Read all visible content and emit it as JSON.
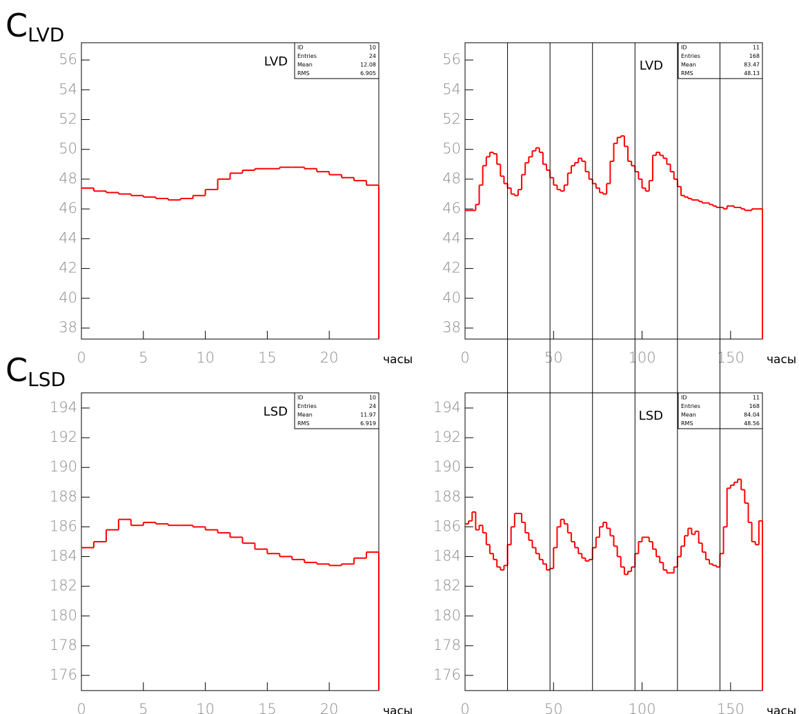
{
  "panel_labels": [
    {
      "letter": "C",
      "subscript": "LVD"
    },
    {
      "letter": "C",
      "subscript": "LSD"
    }
  ],
  "chart_data": [
    {
      "type": "histogram",
      "annotation": "LVD",
      "xlabel": "часы",
      "color": "#ff0000",
      "bins": [
        0,
        1,
        2,
        3,
        4,
        5,
        6,
        7,
        8,
        9,
        10,
        11,
        12,
        13,
        14,
        15,
        16,
        17,
        18,
        19,
        20,
        21,
        22,
        23,
        24
      ],
      "values": [
        47.4,
        47.2,
        47.1,
        47.0,
        46.9,
        46.8,
        46.7,
        46.6,
        46.7,
        46.9,
        47.3,
        48.0,
        48.4,
        48.6,
        48.7,
        48.7,
        48.8,
        48.8,
        48.7,
        48.5,
        48.3,
        48.1,
        47.9,
        47.6
      ],
      "xlim": [
        0,
        24
      ],
      "ylim": [
        37.26,
        57.16
      ],
      "xticks": [
        0,
        5,
        10,
        15,
        20
      ],
      "yticks": [
        38,
        40,
        42,
        44,
        46,
        48,
        50,
        52,
        54,
        56
      ],
      "stats": [
        [
          "ID",
          "10"
        ],
        [
          "Entries",
          "24"
        ],
        [
          "Mean",
          "12.08"
        ],
        [
          "RMS",
          "6.905"
        ]
      ]
    },
    {
      "type": "histogram",
      "annotation": "LVD",
      "xlabel": "часы",
      "color": "#ff0000",
      "bins": [
        0,
        2,
        4,
        6,
        8,
        10,
        12,
        14,
        16,
        18,
        20,
        22,
        24,
        26,
        28,
        30,
        32,
        34,
        36,
        38,
        40,
        42,
        44,
        46,
        48,
        50,
        52,
        54,
        56,
        58,
        60,
        62,
        64,
        66,
        68,
        70,
        72,
        74,
        76,
        78,
        80,
        82,
        84,
        86,
        88,
        90,
        92,
        94,
        96,
        98,
        100,
        102,
        104,
        106,
        108,
        110,
        112,
        114,
        116,
        118,
        120,
        122,
        124,
        126,
        128,
        130,
        132,
        134,
        136,
        138,
        140,
        142,
        144,
        146,
        148,
        150,
        152,
        154,
        156,
        158,
        160,
        162,
        164,
        166,
        168
      ],
      "values": [
        45.9,
        45.9,
        45.9,
        46.3,
        47.6,
        48.9,
        49.5,
        49.8,
        49.7,
        49.0,
        48.2,
        47.7,
        47.4,
        47.0,
        46.9,
        47.3,
        48.3,
        49.1,
        49.5,
        49.9,
        50.1,
        49.8,
        49.0,
        48.6,
        48.1,
        47.6,
        47.3,
        47.2,
        47.6,
        48.4,
        48.9,
        49.1,
        49.4,
        49.2,
        48.5,
        48.0,
        47.7,
        47.4,
        47.1,
        47.0,
        47.7,
        49.2,
        50.4,
        50.8,
        50.9,
        50.2,
        49.2,
        48.9,
        48.5,
        48.0,
        47.4,
        47.2,
        47.9,
        49.6,
        49.8,
        49.6,
        49.4,
        49.0,
        48.5,
        48.0,
        47.5,
        46.9,
        46.8,
        46.7,
        46.6,
        46.6,
        46.5,
        46.4,
        46.4,
        46.3,
        46.2,
        46.1,
        46.1,
        46.0,
        46.2,
        46.2,
        46.1,
        46.1,
        46.0,
        45.9,
        45.9,
        46.0,
        46.0,
        46.0
      ],
      "xlim": [
        0,
        168
      ],
      "ylim": [
        37.26,
        57.16
      ],
      "xticks": [
        0,
        50,
        100,
        150
      ],
      "yticks": [
        38,
        40,
        42,
        44,
        46,
        48,
        50,
        52,
        54,
        56
      ],
      "vlines": [
        24,
        48,
        72,
        96,
        120,
        144
      ],
      "stats": [
        [
          "ID",
          "11"
        ],
        [
          "Entries",
          "168"
        ],
        [
          "Mean",
          "83.47"
        ],
        [
          "RMS",
          "48.13"
        ]
      ]
    },
    {
      "type": "histogram",
      "annotation": "LSD",
      "xlabel": "часы",
      "color": "#ff0000",
      "bins": [
        0,
        1,
        2,
        3,
        4,
        5,
        6,
        7,
        8,
        9,
        10,
        11,
        12,
        13,
        14,
        15,
        16,
        17,
        18,
        19,
        20,
        21,
        22,
        23,
        24
      ],
      "values": [
        184.6,
        185.0,
        185.8,
        186.5,
        186.1,
        186.3,
        186.2,
        186.1,
        186.1,
        186.0,
        185.8,
        185.6,
        185.3,
        184.9,
        184.5,
        184.2,
        184.0,
        183.8,
        183.6,
        183.5,
        183.4,
        183.5,
        183.9,
        184.3
      ],
      "xlim": [
        0,
        24
      ],
      "ylim": [
        174.98,
        195.02
      ],
      "xticks": [
        0,
        5,
        10,
        15,
        20
      ],
      "yticks": [
        176,
        178,
        180,
        182,
        184,
        186,
        188,
        190,
        192,
        194
      ],
      "stats": [
        [
          "ID",
          "10"
        ],
        [
          "Entries",
          "24"
        ],
        [
          "Mean",
          "11.97"
        ],
        [
          "RMS",
          "6.919"
        ]
      ]
    },
    {
      "type": "histogram",
      "annotation": "LSD",
      "xlabel": "часы",
      "color": "#ff0000",
      "bins": [
        0,
        2,
        4,
        6,
        8,
        10,
        12,
        14,
        16,
        18,
        20,
        22,
        24,
        26,
        28,
        30,
        32,
        34,
        36,
        38,
        40,
        42,
        44,
        46,
        48,
        50,
        52,
        54,
        56,
        58,
        60,
        62,
        64,
        66,
        68,
        70,
        72,
        74,
        76,
        78,
        80,
        82,
        84,
        86,
        88,
        90,
        92,
        94,
        96,
        98,
        100,
        102,
        104,
        106,
        108,
        110,
        112,
        114,
        116,
        118,
        120,
        122,
        124,
        126,
        128,
        130,
        132,
        134,
        136,
        138,
        140,
        142,
        144,
        146,
        148,
        150,
        152,
        154,
        156,
        158,
        160,
        162,
        164,
        166,
        168
      ],
      "values": [
        186.2,
        186.4,
        187.0,
        185.8,
        186.1,
        185.6,
        184.8,
        184.2,
        183.8,
        183.3,
        183.1,
        183.4,
        184.8,
        186.0,
        186.9,
        186.9,
        186.3,
        185.6,
        185.1,
        184.6,
        184.2,
        183.8,
        183.5,
        183.1,
        183.2,
        184.6,
        186.0,
        186.5,
        186.2,
        185.6,
        185.0,
        184.6,
        184.2,
        183.9,
        183.7,
        183.8,
        184.6,
        185.3,
        186.0,
        186.3,
        185.9,
        185.4,
        184.7,
        184.0,
        183.3,
        182.8,
        183.0,
        183.3,
        184.2,
        185.0,
        185.3,
        185.3,
        185.0,
        184.5,
        184.0,
        183.6,
        183.1,
        182.9,
        182.9,
        183.3,
        184.0,
        184.7,
        185.4,
        185.9,
        185.5,
        185.7,
        184.9,
        184.3,
        183.8,
        183.5,
        183.4,
        183.3,
        184.2,
        186.0,
        188.6,
        188.8,
        189.0,
        189.2,
        188.5,
        187.6,
        186.3,
        185.0,
        184.8,
        186.4
      ],
      "xlim": [
        0,
        168
      ],
      "ylim": [
        174.98,
        195.02
      ],
      "xticks": [
        0,
        50,
        100,
        150
      ],
      "yticks": [
        176,
        178,
        180,
        182,
        184,
        186,
        188,
        190,
        192,
        194
      ],
      "stats": [
        [
          "ID",
          "11"
        ],
        [
          "Entries",
          "168"
        ],
        [
          "Mean",
          "84.04"
        ],
        [
          "RMS",
          "48.56"
        ]
      ]
    }
  ]
}
